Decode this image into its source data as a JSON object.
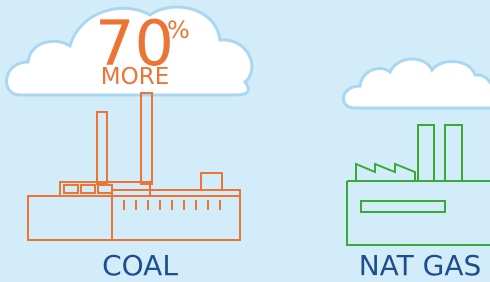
{
  "callout": {
    "number": "70",
    "unit": "%",
    "caption": "MORE"
  },
  "labels": {
    "left": "COAL",
    "right": "NAT GAS"
  }
}
